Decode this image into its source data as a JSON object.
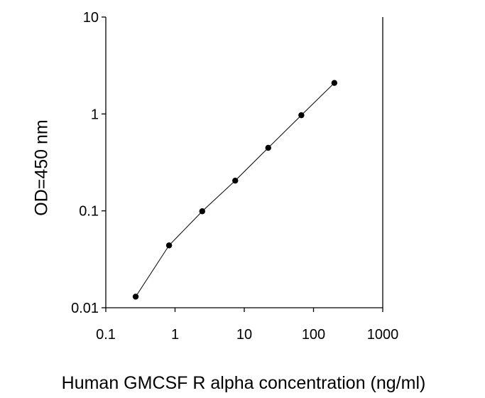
{
  "chart_data": {
    "type": "line",
    "title": "",
    "xlabel": "Human GMCSF R alpha concentration (ng/ml)",
    "ylabel": "OD=450 nm",
    "x_scale": "log",
    "y_scale": "log",
    "xlim": [
      0.1,
      1000
    ],
    "ylim": [
      0.01,
      10
    ],
    "x_ticks": [
      "0.1",
      "1",
      "10",
      "100",
      "1000"
    ],
    "y_ticks": [
      "0.01",
      "0.1",
      "1",
      "10"
    ],
    "grid": false,
    "legend": "none",
    "series": [
      {
        "x": [
          0.27,
          0.82,
          2.47,
          7.4,
          22.2,
          66.7,
          200
        ],
        "y": [
          0.013,
          0.044,
          0.099,
          0.205,
          0.447,
          0.97,
          2.09
        ]
      }
    ],
    "colors": {
      "line": "#000000",
      "marker": "#000000"
    }
  }
}
